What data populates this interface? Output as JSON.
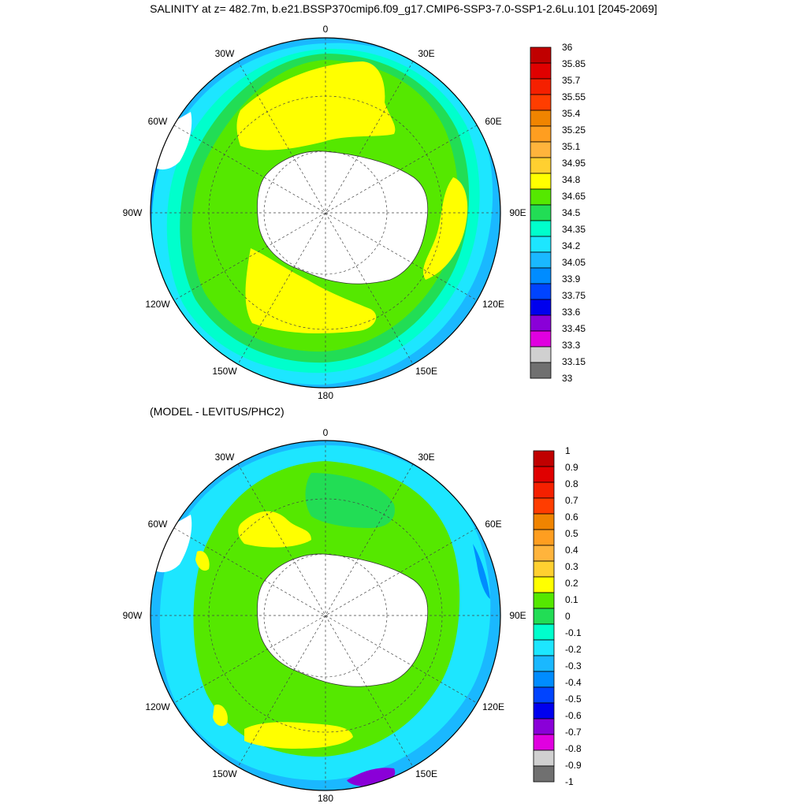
{
  "title": "SALINITY at z= 482.7m, b.e21.BSSP370cmip6.f09_g17.CMIP6-SSP3-7.0-SSP1-2.6Lu.101 [2045-2069]",
  "subtitle": "(MODEL - LEVITUS/PHC2)",
  "longitude_labels": {
    "top": "0",
    "bottom": "180",
    "left": "90W",
    "right": "90E",
    "upper_left": "30W",
    "upper_right": "30E",
    "mid_left_upper": "60W",
    "mid_right_upper": "60E",
    "mid_left_lower": "120W",
    "mid_right_lower": "120E",
    "lower_left": "150W",
    "lower_right": "150E"
  },
  "salinity_colorbar": {
    "labels": [
      "36",
      "35.85",
      "35.7",
      "35.55",
      "35.4",
      "35.25",
      "35.1",
      "34.95",
      "34.8",
      "34.65",
      "34.5",
      "34.35",
      "34.2",
      "34.05",
      "33.9",
      "33.75",
      "33.6",
      "33.45",
      "33.3",
      "33.15",
      "33"
    ],
    "colors": [
      "#c00000",
      "#e00000",
      "#f52000",
      "#ff3d00",
      "#f08400",
      "#ff9e20",
      "#ffb43c",
      "#ffd030",
      "#ffff00",
      "#55e800",
      "#22dd55",
      "#00ffcc",
      "#1de6ff",
      "#1ab8ff",
      "#008cff",
      "#0044ff",
      "#0000ee",
      "#8a00d8",
      "#e000e0",
      "#d0d0d0",
      "#707070"
    ]
  },
  "difference_colorbar": {
    "labels": [
      "1",
      "0.9",
      "0.8",
      "0.7",
      "0.6",
      "0.5",
      "0.4",
      "0.3",
      "0.2",
      "0.1",
      "0",
      "-0.1",
      "-0.2",
      "-0.3",
      "-0.4",
      "-0.5",
      "-0.6",
      "-0.7",
      "-0.8",
      "-0.9",
      "-1"
    ],
    "colors": [
      "#c00000",
      "#e00000",
      "#f52000",
      "#ff3d00",
      "#f08400",
      "#ff9e20",
      "#ffb43c",
      "#ffd030",
      "#ffff00",
      "#55e800",
      "#22dd55",
      "#00ffcc",
      "#1de6ff",
      "#1ab8ff",
      "#008cff",
      "#0044ff",
      "#0000ee",
      "#8a00d8",
      "#e000e0",
      "#d0d0d0",
      "#707070"
    ]
  },
  "map_colors": {
    "outer_ocean": "#1ab8ff",
    "cyan_band": "#1de6ff",
    "teal_band": "#00ffcc",
    "green_band": "#22dd55",
    "bright_green": "#55e800",
    "yellow": "#ffff00",
    "land": "#ffffff",
    "dark_blue": "#008cff",
    "purple": "#8a00d8",
    "magenta": "#e000e0"
  }
}
